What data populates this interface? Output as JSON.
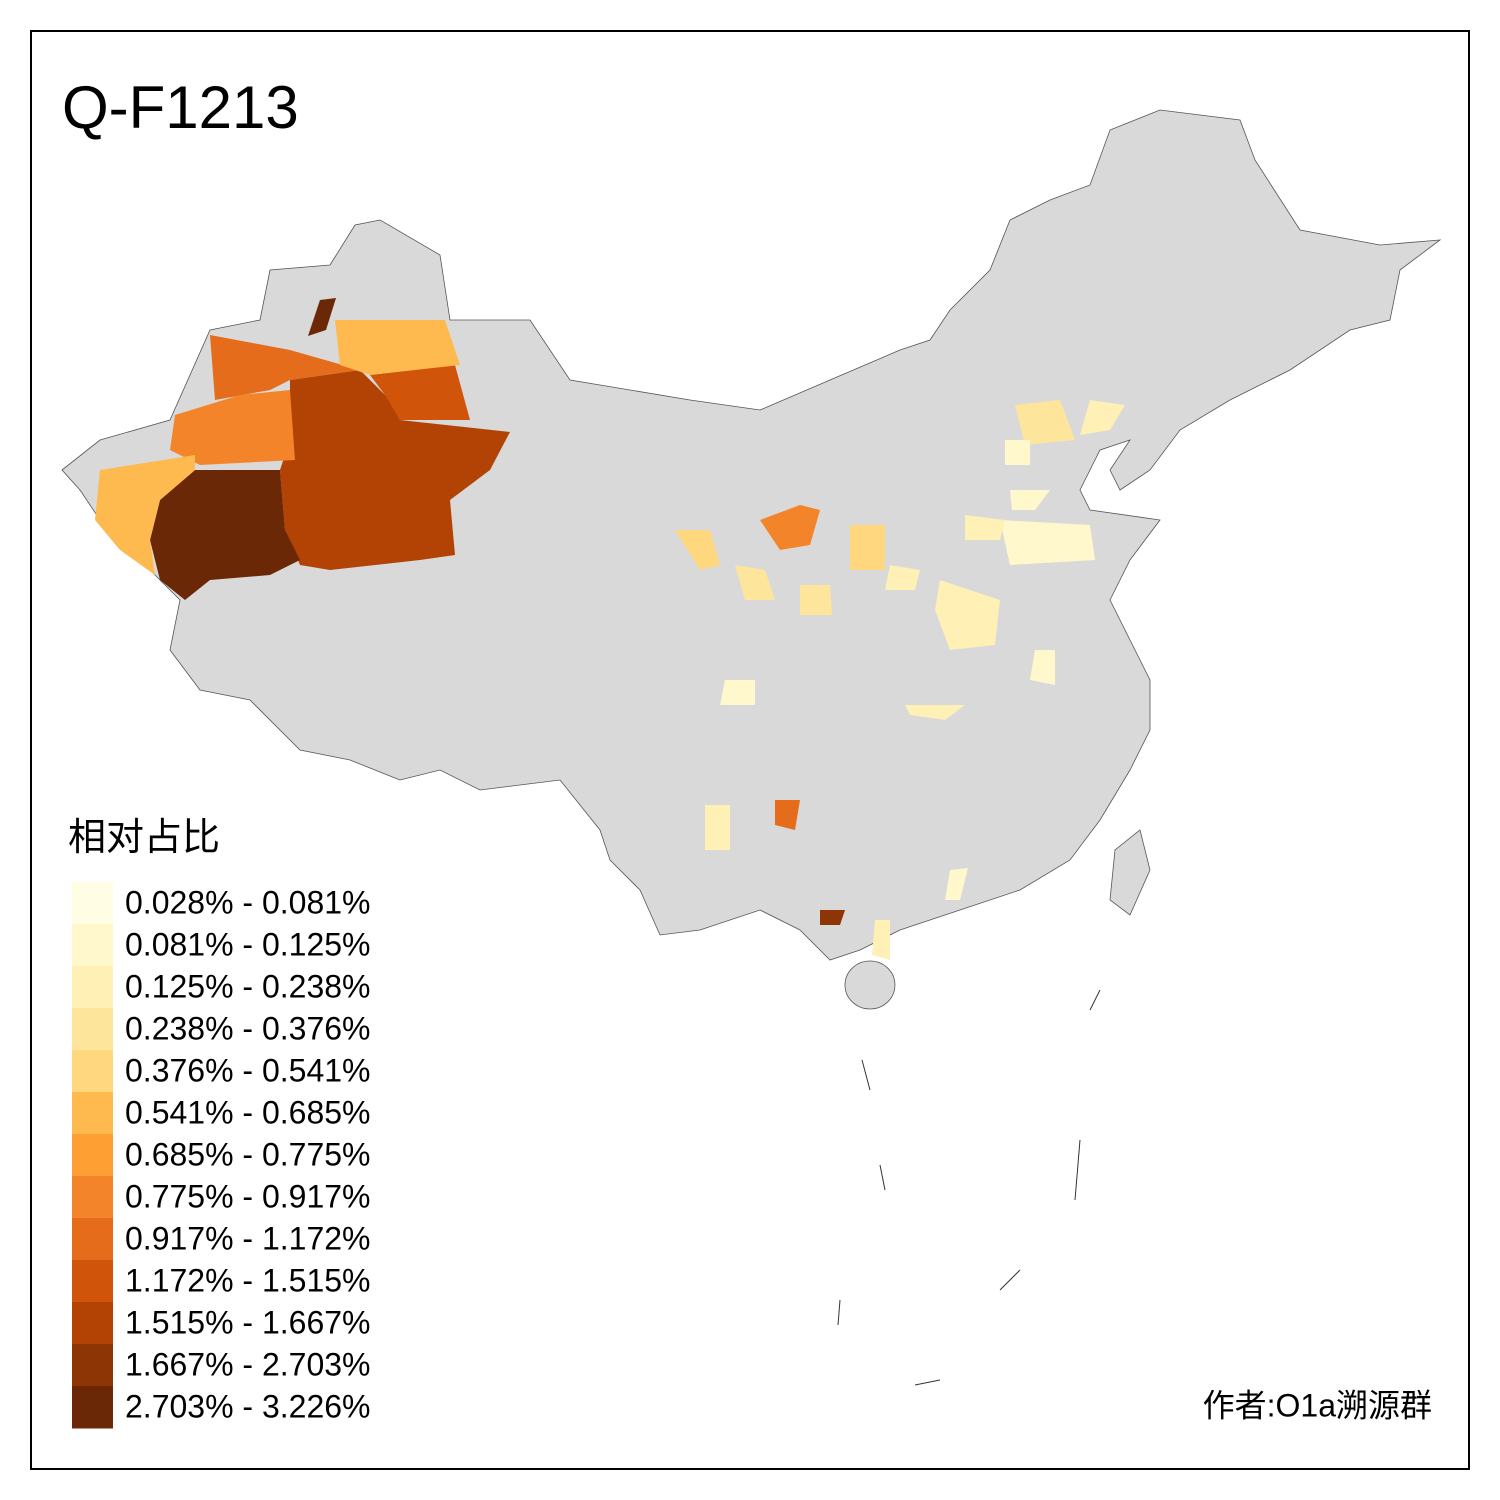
{
  "title": "Q-F1213",
  "legend": {
    "title": "相对占比",
    "items": [
      {
        "label": "0.028% - 0.081%",
        "color": "#fffee4"
      },
      {
        "label": "0.081% - 0.125%",
        "color": "#fff8cc"
      },
      {
        "label": "0.125% - 0.238%",
        "color": "#fff0b5"
      },
      {
        "label": "0.238% - 0.376%",
        "color": "#fee59c"
      },
      {
        "label": "0.376% - 0.541%",
        "color": "#fed77f"
      },
      {
        "label": "0.541% - 0.685%",
        "color": "#feba4f"
      },
      {
        "label": "0.685% - 0.775%",
        "color": "#fd9f33"
      },
      {
        "label": "0.775% - 0.917%",
        "color": "#f4842a"
      },
      {
        "label": "0.917% - 1.172%",
        "color": "#e46c1a"
      },
      {
        "label": "1.172% - 1.515%",
        "color": "#d05409"
      },
      {
        "label": "1.515% - 1.667%",
        "color": "#b24304"
      },
      {
        "label": "1.667% - 2.703%",
        "color": "#8e3506"
      },
      {
        "label": "2.703% - 3.226%",
        "color": "#6b2807"
      }
    ]
  },
  "author": "作者:O1a溯源群"
}
